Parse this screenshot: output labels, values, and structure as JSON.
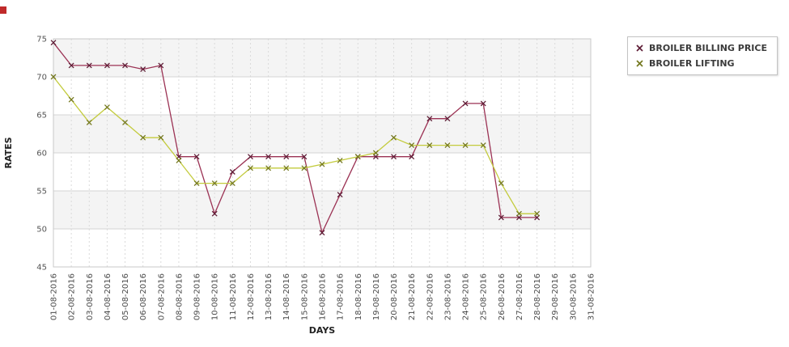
{
  "chart_data": {
    "type": "line",
    "title": "",
    "xlabel": "DAYS",
    "ylabel": "RATES",
    "ylim": [
      45,
      75
    ],
    "yticks": [
      45,
      50,
      55,
      60,
      65,
      70,
      75
    ],
    "grid": true,
    "legend_position": "top-right",
    "plot_style": {
      "band_fill": "#ffffff",
      "band_alt_fill": "#f4f4f4",
      "hgrid_color": "#d4d4d4",
      "vgrid_color": "#dadada",
      "border_color": "#c9c9c9"
    },
    "categories": [
      "01-08-2016",
      "02-08-2016",
      "03-08-2016",
      "04-08-2016",
      "05-08-2016",
      "06-08-2016",
      "07-08-2016",
      "08-08-2016",
      "09-08-2016",
      "10-08-2016",
      "11-08-2016",
      "12-08-2016",
      "13-08-2016",
      "14-08-2016",
      "15-08-2016",
      "16-08-2016",
      "17-08-2016",
      "18-08-2016",
      "19-08-2016",
      "20-08-2016",
      "21-08-2016",
      "22-08-2016",
      "23-08-2016",
      "24-08-2016",
      "25-08-2016",
      "26-08-2016",
      "27-08-2016",
      "28-08-2016",
      "29-08-2016",
      "30-08-2016",
      "31-08-2016"
    ],
    "series": [
      {
        "name": "BROILER BILLING PRICE",
        "color": "#9b3254",
        "marker_color": "#5f1e37",
        "marker": "x",
        "values": [
          74.5,
          71.5,
          71.5,
          71.5,
          71.5,
          71,
          71.5,
          59.5,
          59.5,
          52,
          57.5,
          59.5,
          59.5,
          59.5,
          59.5,
          49.5,
          54.5,
          59.5,
          59.5,
          59.5,
          59.5,
          64.5,
          64.5,
          66.5,
          66.5,
          51.5,
          51.5,
          51.5,
          null,
          null,
          null
        ]
      },
      {
        "name": "BROILER LIFTING",
        "color": "#c3cb3d",
        "marker_color": "#74781f",
        "marker": "x",
        "values": [
          70,
          67,
          64,
          66,
          64,
          62,
          62,
          59,
          56,
          56,
          56,
          58,
          58,
          58,
          58,
          58.5,
          59,
          59.5,
          60,
          62,
          61,
          61,
          61,
          61,
          61,
          56,
          52,
          52,
          null,
          null,
          null
        ]
      }
    ]
  }
}
